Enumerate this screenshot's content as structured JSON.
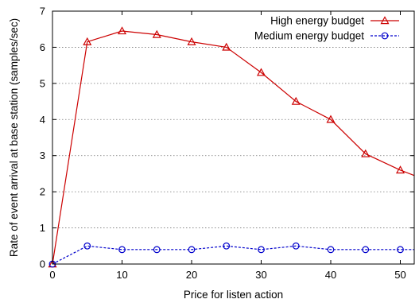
{
  "chart_data": {
    "type": "line",
    "xlabel": "Price for listen action",
    "ylabel": "Rate of event arrival at base station (samples/sec)",
    "xlim": [
      0,
      52
    ],
    "ylim": [
      0,
      7
    ],
    "x_ticks": [
      "0",
      "10",
      "20",
      "30",
      "40",
      "50"
    ],
    "y_ticks": [
      "0",
      "1",
      "2",
      "3",
      "4",
      "5",
      "6",
      "7"
    ],
    "grid": "horizontal dotted",
    "legend_position": "top-right",
    "series": [
      {
        "name": "High energy budget",
        "color": "#cc0000",
        "line_style": "solid",
        "marker": "triangle-open",
        "x": [
          0,
          5,
          10,
          15,
          20,
          25,
          30,
          35,
          40,
          45,
          50,
          52
        ],
        "y": [
          0,
          6.15,
          6.45,
          6.35,
          6.15,
          6.0,
          5.3,
          4.5,
          4.0,
          3.05,
          2.6,
          2.45
        ],
        "marker_indices": [
          0,
          1,
          2,
          3,
          4,
          5,
          6,
          7,
          8,
          9,
          10
        ]
      },
      {
        "name": "Medium energy budget",
        "color": "#0000cc",
        "line_style": "dashed",
        "marker": "circle-open",
        "x": [
          0,
          5,
          10,
          15,
          20,
          25,
          30,
          35,
          40,
          45,
          50,
          52
        ],
        "y": [
          0,
          0.5,
          0.4,
          0.4,
          0.4,
          0.5,
          0.4,
          0.5,
          0.4,
          0.4,
          0.4,
          0.4
        ],
        "marker_indices": [
          0,
          1,
          2,
          3,
          4,
          5,
          6,
          7,
          8,
          9,
          10
        ]
      }
    ]
  }
}
